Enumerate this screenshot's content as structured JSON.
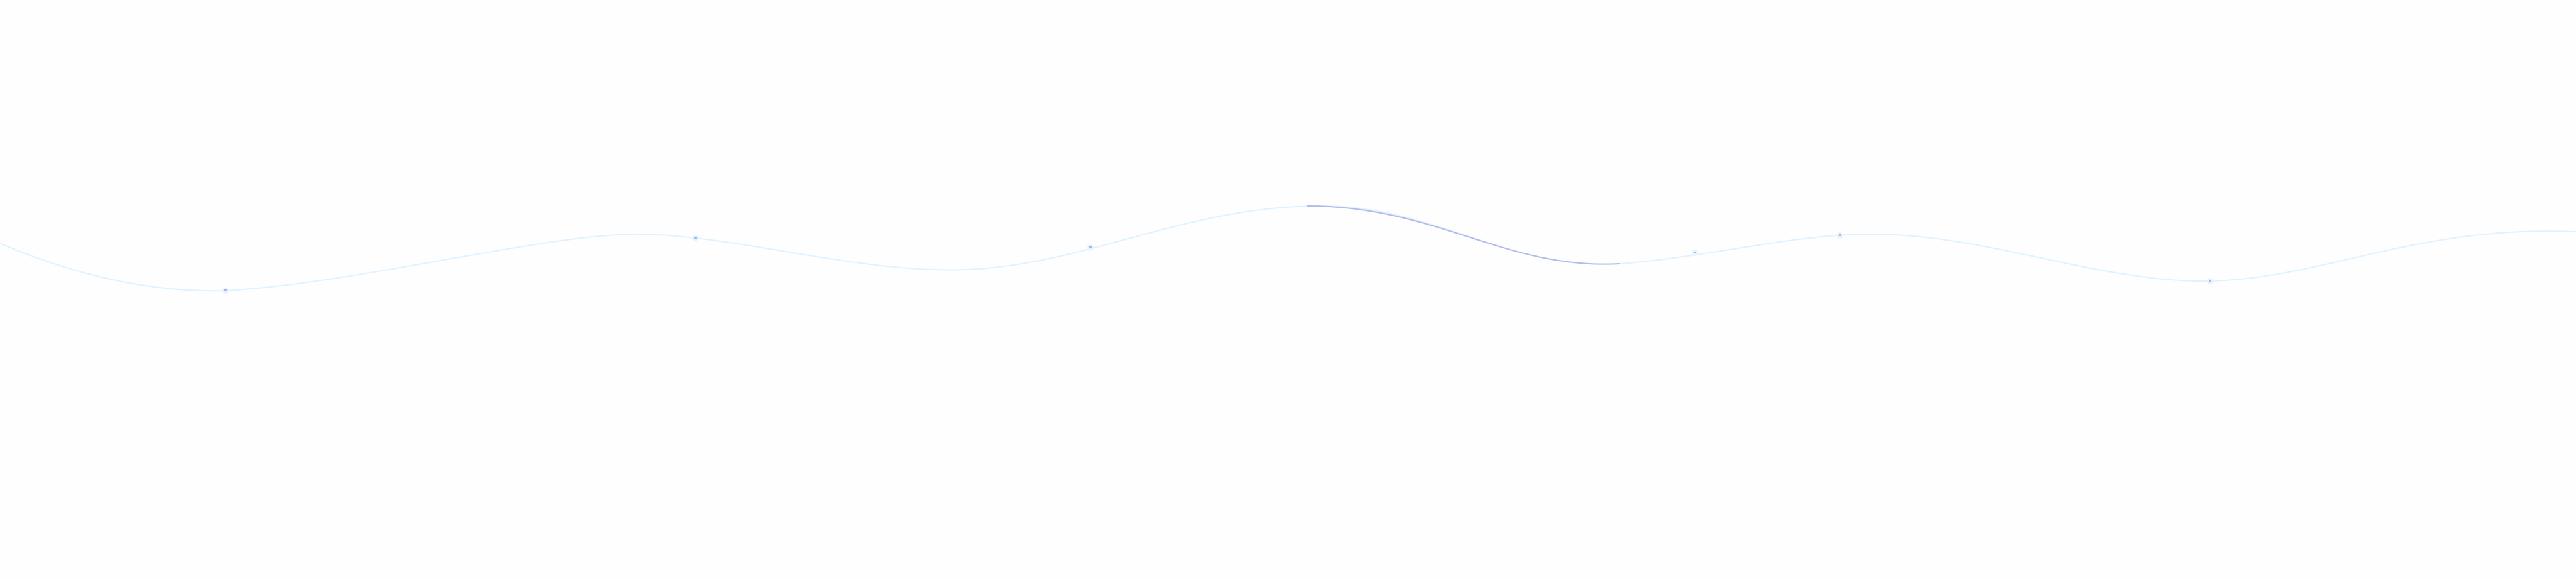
{
  "colors": {
    "background": "#fefefe",
    "wave": "#dff2ff",
    "wave_highlight": "#b3bbe8",
    "sparkle": "#a9b4e6"
  },
  "decoration": {
    "type": "wave-line",
    "sparkle_count": 6
  }
}
